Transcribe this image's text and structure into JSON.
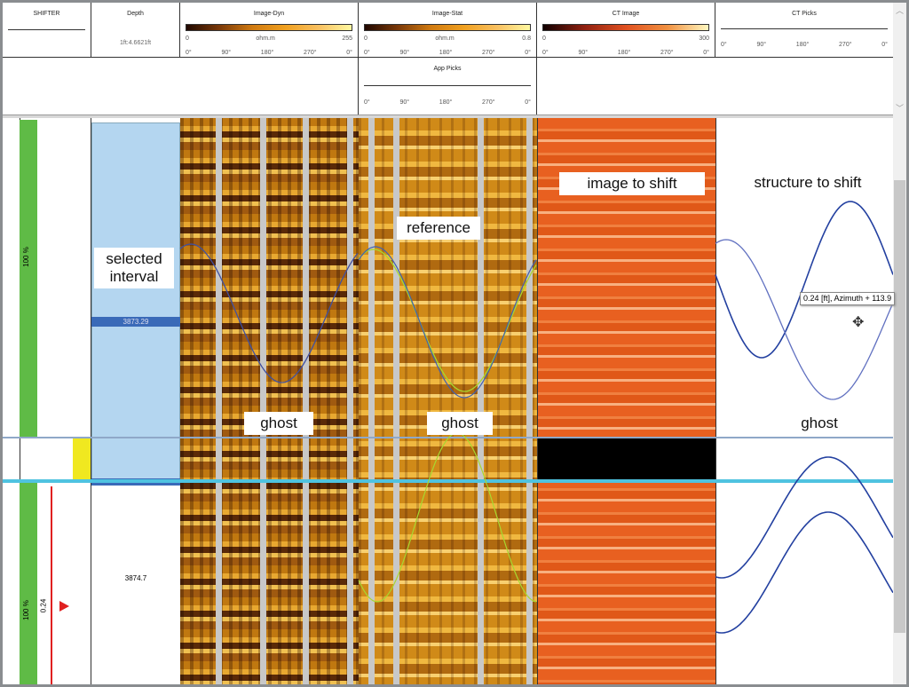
{
  "header": {
    "shifter": {
      "title": "SHIFTER"
    },
    "depth": {
      "title": "Depth",
      "scale": "1ft:4.6621ft"
    },
    "image_dyn": {
      "title": "Image-Dyn",
      "min": "0",
      "unit": "ohm.m",
      "max": "255",
      "azimuth": [
        "0°",
        "90°",
        "180°",
        "270°",
        "0°"
      ]
    },
    "image_stat": {
      "title": "Image-Stat",
      "min": "0",
      "unit": "ohm.m",
      "max": "0.8",
      "azimuth": [
        "0°",
        "90°",
        "180°",
        "270°",
        "0°"
      ]
    },
    "app_picks": {
      "title": "App Picks",
      "azimuth": [
        "0°",
        "90°",
        "180°",
        "270°",
        "0°"
      ]
    },
    "ct_image": {
      "title": "CT Image",
      "min": "0",
      "max": "300",
      "azimuth": [
        "0°",
        "90°",
        "180°",
        "270°",
        "0°"
      ]
    },
    "ct_picks": {
      "title": "CT Picks",
      "azimuth": [
        "0°",
        "90°",
        "180°",
        "270°",
        "0°"
      ]
    }
  },
  "shifter": {
    "upper_percent": "100 %",
    "lower_percent": "100 %",
    "shift_value": "0.24"
  },
  "depth": {
    "selected_depth": "3873.29",
    "lower_depth": "3874.7"
  },
  "annotations": {
    "selected_interval": "selected\ninterval",
    "reference": "reference",
    "image_to_shift": "image to shift",
    "structure_to_shift": "structure to shift",
    "ghost": "ghost"
  },
  "tooltip": "0.24 [ft], Azimuth + 113.9",
  "colors": {
    "green": "#5fbb46",
    "selected": "#b4d6f0",
    "cyan": "#4fc3e0",
    "yellow": "#f0e820",
    "marker": "#e02020",
    "pick_blue": "#2340a0",
    "pick_green": "#a8d830"
  }
}
